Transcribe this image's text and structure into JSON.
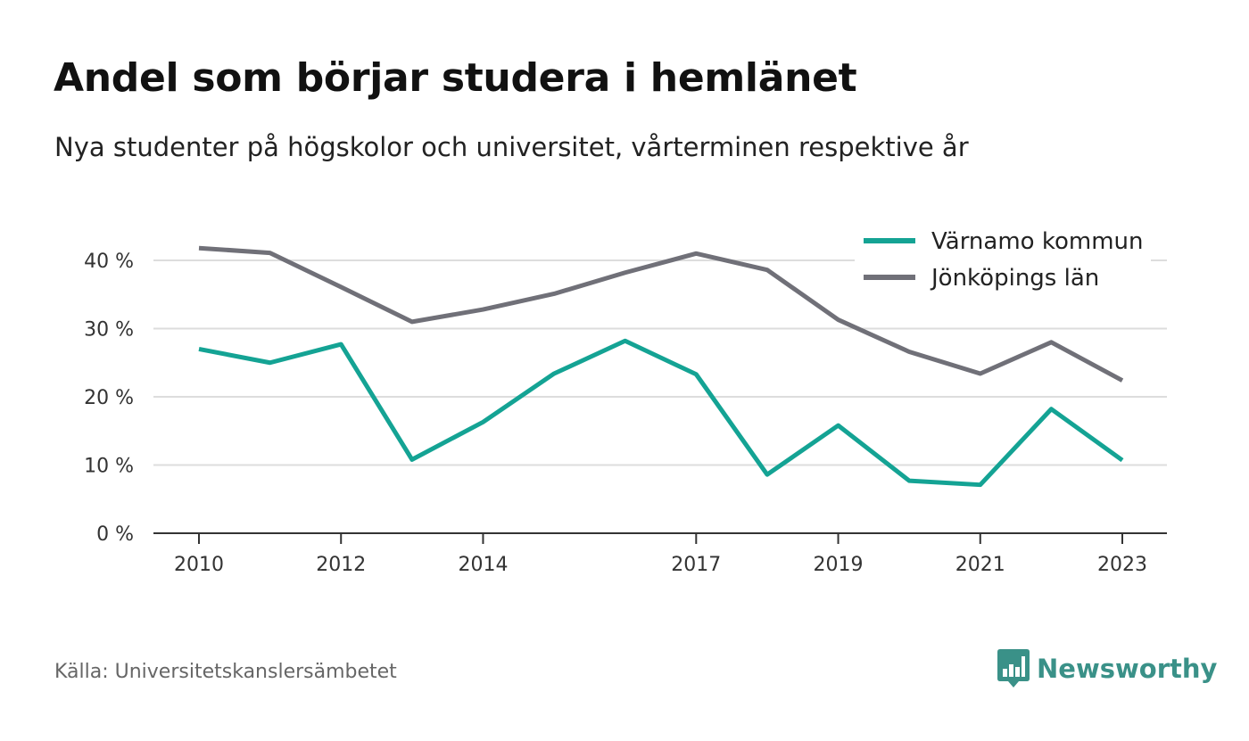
{
  "header": {
    "title": "Andel som börjar studera i hemlänet",
    "subtitle": "Nya studenter på högskolor och universitet, vårterminen respektive år"
  },
  "footer": {
    "source": "Källa: Universitetskanslersämbetet",
    "brand": "Newsworthy",
    "brand_icon": "bar-chart-speech-bubble-icon"
  },
  "colors": {
    "varnamo": "#14a394",
    "jonkoping": "#707078",
    "grid": "#dddddd",
    "axis": "#333333",
    "brand": "#3a9188"
  },
  "chart_data": {
    "type": "line",
    "title": "Andel som börjar studera i hemlänet",
    "subtitle": "Nya studenter på högskolor och universitet, vårterminen respektive år",
    "x": [
      2010,
      2011,
      2012,
      2013,
      2014,
      2015,
      2016,
      2017,
      2018,
      2019,
      2020,
      2021,
      2022,
      2023
    ],
    "x_tick_labels": [
      "2010",
      "2012",
      "2014",
      "2017",
      "2019",
      "2021",
      "2023"
    ],
    "x_ticks": [
      2010,
      2012,
      2014,
      2017,
      2019,
      2021,
      2023
    ],
    "y_ticks": [
      0,
      10,
      20,
      30,
      40
    ],
    "y_tick_labels": [
      "0 %",
      "10 %",
      "20 %",
      "30 %",
      "40 %"
    ],
    "ylim": [
      0,
      40
    ],
    "grid": true,
    "legend_position": "top-right",
    "series": [
      {
        "name": "Värnamo kommun",
        "color": "#14a394",
        "values": [
          27.0,
          25.0,
          27.7,
          10.8,
          16.3,
          23.4,
          28.2,
          23.3,
          8.6,
          15.8,
          7.7,
          7.1,
          18.2,
          10.7
        ]
      },
      {
        "name": "Jönköpings län",
        "color": "#707078",
        "values": [
          41.8,
          41.1,
          36.1,
          31.0,
          32.8,
          35.1,
          38.2,
          41.0,
          38.6,
          31.3,
          26.6,
          23.4,
          28.0,
          22.4
        ]
      }
    ]
  }
}
